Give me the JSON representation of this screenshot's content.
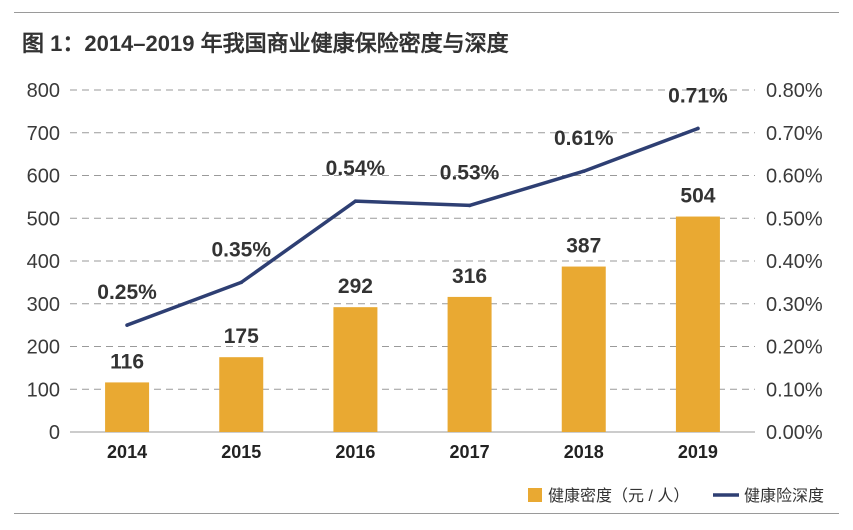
{
  "title": "图 1：2014–2019 年我国商业健康保险密度与深度",
  "colors": {
    "bar": "#E9A932",
    "line": "#2E3F73",
    "grid": "#9a9a9a"
  },
  "chart_data": {
    "type": "bar",
    "categories": [
      "2014",
      "2015",
      "2016",
      "2017",
      "2018",
      "2019"
    ],
    "series": [
      {
        "name": "健康密度（元 / 人）",
        "type": "bar",
        "axis": "left",
        "values": [
          116,
          175,
          292,
          316,
          387,
          504
        ],
        "labels": [
          "116",
          "175",
          "292",
          "316",
          "387",
          "504"
        ]
      },
      {
        "name": "健康险深度",
        "type": "line",
        "axis": "right",
        "values": [
          0.25,
          0.35,
          0.54,
          0.53,
          0.61,
          0.71
        ],
        "labels": [
          "0.25%",
          "0.35%",
          "0.54%",
          "0.53%",
          "0.61%",
          "0.71%"
        ]
      }
    ],
    "yAxisLeft": {
      "min": 0,
      "max": 800,
      "ticks": [
        "0",
        "100",
        "200",
        "300",
        "400",
        "500",
        "600",
        "700",
        "800"
      ]
    },
    "yAxisRight": {
      "min": 0,
      "max": 0.8,
      "ticks": [
        "0.00%",
        "0.10%",
        "0.20%",
        "0.30%",
        "0.40%",
        "0.50%",
        "0.60%",
        "0.70%",
        "0.80%"
      ]
    },
    "grid": true,
    "legend": {
      "position": "bottom-right"
    }
  }
}
